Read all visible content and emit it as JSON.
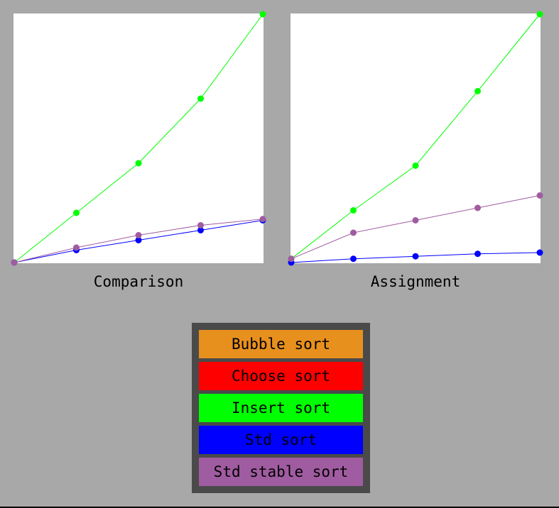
{
  "chart_data": [
    {
      "type": "line",
      "title": "Comparison",
      "x": [
        0,
        1,
        2,
        3,
        4
      ],
      "ylim": [
        0,
        100
      ],
      "series": [
        {
          "name": "Insert sort",
          "color": "#00ff00",
          "values": [
            0,
            20,
            40,
            66,
            100
          ]
        },
        {
          "name": "Std sort",
          "color": "#0000ff",
          "values": [
            0,
            5,
            9,
            13,
            17
          ]
        },
        {
          "name": "Std stable sort",
          "color": "#a05ca0",
          "values": [
            0,
            6,
            11,
            15,
            17.5
          ]
        }
      ]
    },
    {
      "type": "line",
      "title": "Assignment",
      "x": [
        0,
        1,
        2,
        3,
        4
      ],
      "ylim": [
        0,
        100
      ],
      "series": [
        {
          "name": "Insert sort",
          "color": "#00ff00",
          "values": [
            1.5,
            21,
            39,
            69,
            100
          ]
        },
        {
          "name": "Std sort",
          "color": "#0000ff",
          "values": [
            0,
            1.5,
            2.5,
            3.5,
            4
          ]
        },
        {
          "name": "Std stable sort",
          "color": "#a05ca0",
          "values": [
            1.5,
            12,
            17,
            22,
            27
          ]
        }
      ]
    }
  ],
  "legend": {
    "items": [
      {
        "label": "Bubble sort",
        "color": "#e8901e"
      },
      {
        "label": "Choose sort",
        "color": "#ff0000"
      },
      {
        "label": "Insert sort",
        "color": "#00ff00"
      },
      {
        "label": "Std sort",
        "color": "#0000ff"
      },
      {
        "label": "Std stable sort",
        "color": "#a05ca0"
      }
    ]
  }
}
